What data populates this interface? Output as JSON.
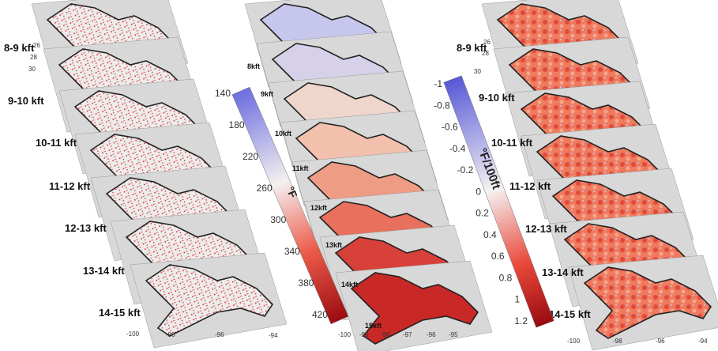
{
  "left_panel": {
    "labels": [
      "8-9 kft",
      "9-10 kft",
      "10-11 kft",
      "11-12 kft",
      "12-13 kft",
      "13-14 kft",
      "14-15 kft"
    ],
    "lat_ticks": [
      26,
      28,
      30
    ],
    "lon_ticks": [
      -100,
      -98,
      -96,
      -94
    ]
  },
  "middle_panel": {
    "labels": [
      "8kft",
      "9kft",
      "10kft",
      "11kft",
      "12kft",
      "13kft",
      "14kft",
      "15kft"
    ],
    "lon_ticks": [
      -100,
      -99,
      -98,
      -97,
      -96,
      -95
    ]
  },
  "temperature_colorbar": {
    "label": "°F",
    "ticks": [
      140,
      180,
      220,
      260,
      300,
      340,
      380,
      420
    ]
  },
  "lapse_rate_colorbar": {
    "label": "°F/100ft",
    "ticks": [
      -1,
      -0.8,
      -0.6,
      -0.4,
      -0.2,
      0,
      0.2,
      0.4,
      0.6,
      0.8,
      1,
      1.2
    ]
  },
  "right_panel": {
    "labels": [
      "8-9 kft",
      "9-10 kft",
      "10-11 kft",
      "11-12 kft",
      "12-13 kft",
      "13-14 kft",
      "14-15 kft"
    ],
    "lat_ticks": [
      26,
      28,
      30
    ],
    "lon_ticks": [
      -100,
      -98,
      -96,
      -94
    ]
  }
}
